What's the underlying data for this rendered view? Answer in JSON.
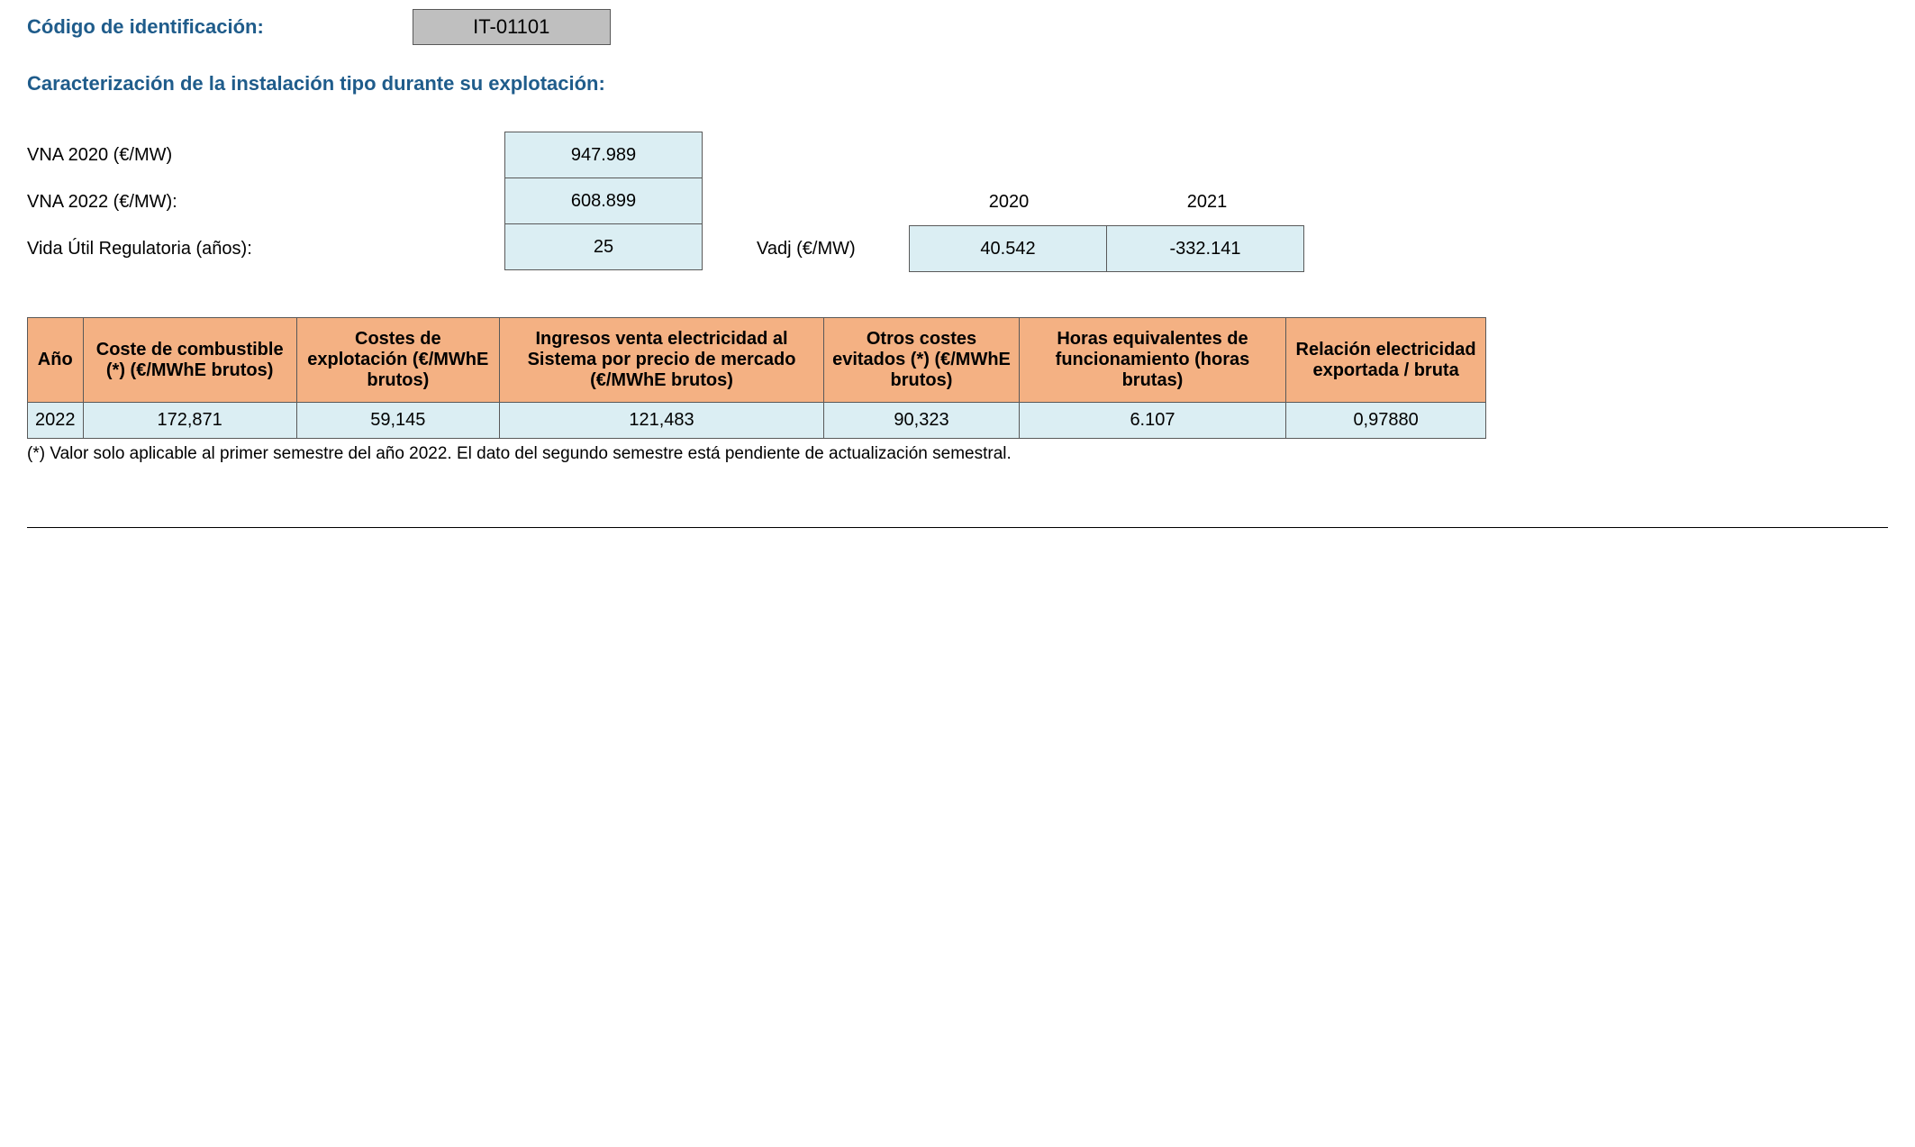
{
  "header": {
    "code_label": "Código de identificación:",
    "code_value": "IT-01101"
  },
  "section_title": "Caracterización de la instalación tipo durante su explotación:",
  "params": {
    "labels": {
      "vna2020": "VNA 2020 (€/MW)",
      "vna2022": "VNA 2022 (€/MW):",
      "vida_util": "Vida Útil Regulatoria (años):"
    },
    "values": {
      "vna2020": "947.989",
      "vna2022": "608.899",
      "vida_util": "25"
    }
  },
  "vadj": {
    "label": "Vadj (€/MW)",
    "years": [
      "2020",
      "2021"
    ],
    "values": [
      "40.542",
      "-332.141"
    ]
  },
  "table": {
    "type": "table",
    "header_bg": "#f4b183",
    "row_bg": "#dbeef3",
    "border_color": "#595959",
    "columns": [
      "Año",
      "Coste de combustible (*) (€/MWhE brutos)",
      "Costes de explotación (€/MWhE brutos)",
      "Ingresos venta electricidad al Sistema por precio de mercado (€/MWhE brutos)",
      "Otros costes evitados (*) (€/MWhE brutos)",
      "Horas equivalentes de funcionamiento (horas brutas)",
      "Relación electricidad exportada / bruta"
    ],
    "rows": [
      [
        "2022",
        "172,871",
        "59,145",
        "121,483",
        "90,323",
        "6.107",
        "0,97880"
      ]
    ]
  },
  "footnote": "(*) Valor solo aplicable al primer semestre del año 2022. El dato del segundo semestre está pendiente de actualización semestral.",
  "colors": {
    "heading_blue": "#1f5c8b",
    "code_bg": "#bfbfbf",
    "value_bg": "#dbeef3",
    "header_bg": "#f4b183",
    "border": "#595959",
    "background": "#ffffff"
  }
}
